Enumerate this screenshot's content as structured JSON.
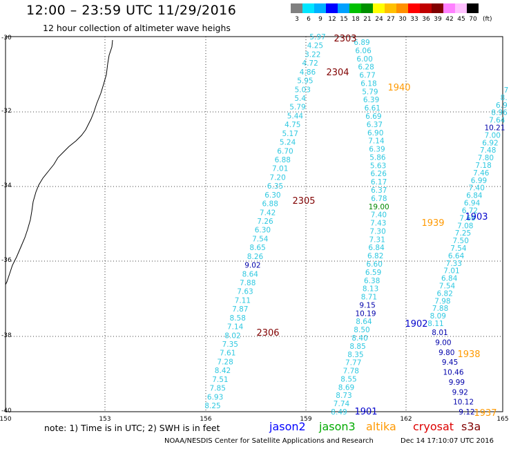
{
  "header": {
    "title": "12:00 – 23:59 UTC 11/29/2016",
    "subtitle": "12 hour collection of altimeter wave heighs"
  },
  "colorbar": {
    "unit": "(ft)",
    "labels": [
      "3",
      "6",
      "9",
      "12",
      "15",
      "18",
      "21",
      "24",
      "27",
      "30",
      "33",
      "36",
      "39",
      "42",
      "45",
      "70"
    ],
    "colors": [
      "#808080",
      "#00e5ff",
      "#00b0ff",
      "#0000ff",
      "#00a0ff",
      "#00c000",
      "#009000",
      "#ffff00",
      "#ffc000",
      "#ff9000",
      "#ff0000",
      "#c00000",
      "#800000",
      "#ff80ff",
      "#ffc0ff",
      "#000000"
    ]
  },
  "map": {
    "lon_labels": [
      "150",
      "153",
      "156",
      "159",
      "162",
      "165"
    ],
    "lat_labels": [
      "-30",
      "-32",
      "-34",
      "-36",
      "-38",
      "-40"
    ],
    "swh_color": "#2ec8e0",
    "tracks": [
      {
        "id": "pass-2303-2306",
        "values": [
          "5.97",
          "4.25",
          "3.22",
          "4.72",
          "4.86",
          "5.95",
          "5.03",
          "5.4",
          "5.79",
          "5.44",
          "4.75",
          "5.17",
          "5.24",
          "6.70",
          "6.88",
          "7.01",
          "7.20",
          "6.35",
          "6.30",
          "6.88",
          "7.42",
          "7.26",
          "6.30",
          "7.54",
          "8.65",
          "8.26",
          "9.02",
          "8.64",
          "7.88",
          "7.63",
          "7.11",
          "7.87",
          "8.58",
          "7.14",
          "8.02",
          "7.35",
          "7.61",
          "7.28",
          "8.42",
          "7.51",
          "7.85",
          "6.93",
          "8.25"
        ]
      },
      {
        "id": "pass-1940-1901",
        "values": [
          "6.89",
          "6.06",
          "6.00",
          "6.28",
          "6.77",
          "6.18",
          "5.79",
          "6.39",
          "6.61",
          "6.69",
          "6.37",
          "6.90",
          "7.14",
          "6.39",
          "5.86",
          "5.63",
          "6.26",
          "6.17",
          "6.37",
          "6.78",
          "19.00",
          "7.40",
          "7.43",
          "7.30",
          "7.31",
          "6.84",
          "6.82",
          "6.60",
          "6.59",
          "6.38",
          "8.13",
          "8.71",
          "9.15",
          "10.19",
          "8.64",
          "8.50",
          "8.40",
          "8.85",
          "8.35",
          "7.77",
          "7.78",
          "8.55",
          "8.69",
          "8.73",
          "7.74",
          "8.49"
        ]
      },
      {
        "id": "pass-1903-1902",
        "values": [
          "7",
          "8.",
          "6.9",
          "8.96",
          "7.64",
          "10.21",
          "7.00",
          "6.92",
          "7.48",
          "7.80",
          "7.18",
          "7.46",
          "6.99",
          "7.40",
          "6.84",
          "6.94",
          "6.72",
          "7.69",
          "7.08",
          "7.25",
          "7.50",
          "7.54",
          "6.64",
          "7.33",
          "7.01",
          "6.84",
          "7.54",
          "6.82",
          "7.98",
          "7.88",
          "8.09",
          "8.11"
        ]
      },
      {
        "id": "pass-1938-1937",
        "values": [
          "8.01",
          "9.00",
          "9.80",
          "9.45",
          "10.46",
          "9.99",
          "9.92",
          "10.12",
          "9.12"
        ]
      }
    ],
    "time_labels": [
      {
        "text": "2303",
        "color": "#800000"
      },
      {
        "text": "2304",
        "color": "#800000"
      },
      {
        "text": "2305",
        "color": "#800000"
      },
      {
        "text": "2306",
        "color": "#800000"
      },
      {
        "text": "1940",
        "color": "#ff9900"
      },
      {
        "text": "1939",
        "color": "#ff9900"
      },
      {
        "text": "1938",
        "color": "#ff9900"
      },
      {
        "text": "1937",
        "color": "#ff9900"
      },
      {
        "text": "1903",
        "color": "#0000cc"
      },
      {
        "text": "1902",
        "color": "#0000cc"
      },
      {
        "text": "1901",
        "color": "#0000cc"
      }
    ]
  },
  "note": "note: 1) Time is in UTC; 2) SWH is in feet",
  "legend": [
    {
      "label": "jason2",
      "color": "#0000ff"
    },
    {
      "label": "jason3",
      "color": "#00aa00"
    },
    {
      "label": "altika",
      "color": "#ff9900"
    },
    {
      "label": "cryosat",
      "color": "#dd0000"
    },
    {
      "label": "s3a",
      "color": "#800000"
    }
  ],
  "footer": "NOAA/NESDIS Center for Satellite Applications and Research",
  "timestamp": "Dec 14 17:10:07 UTC 2016"
}
